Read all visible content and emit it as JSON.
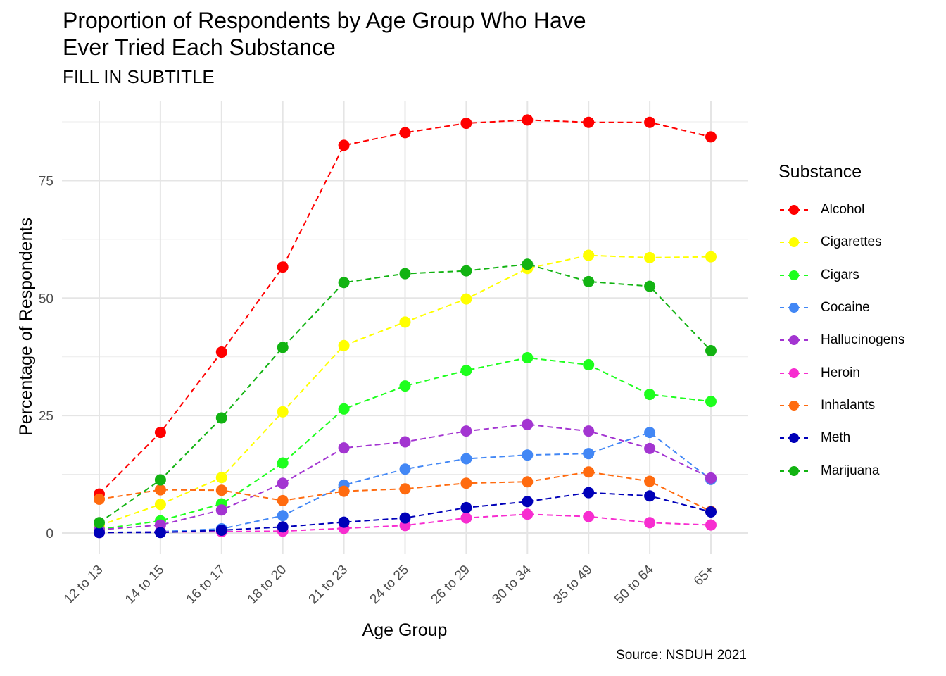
{
  "title": "Proportion of Respondents by Age Group Who Have\nEver Tried Each Substance",
  "subtitle": "FILL IN SUBTITLE",
  "caption": "Source: NSDUH 2021",
  "legend_title": "Substance",
  "chart_data": {
    "type": "line",
    "title": "Proportion of Respondents by Age Group Who Have Ever Tried Each Substance",
    "subtitle": "FILL IN SUBTITLE",
    "xlabel": "Age Group",
    "ylabel": "Percentage of Respondents",
    "categories": [
      "12 to 13",
      "14 to 15",
      "16 to 17",
      "18 to 20",
      "21 to 23",
      "24 to 25",
      "26 to 29",
      "30 to 34",
      "35 to 49",
      "50 to 64",
      "65+"
    ],
    "yticks": [
      0,
      25,
      50,
      75
    ],
    "ylim": [
      -4.5,
      92
    ],
    "grid": true,
    "legend": "right",
    "series": [
      {
        "name": "Alcohol",
        "color": "#FF0000",
        "values": [
          8.3,
          21.4,
          38.5,
          56.6,
          82.5,
          85.2,
          87.2,
          87.9,
          87.4,
          87.4,
          84.3
        ]
      },
      {
        "name": "Cigarettes",
        "color": "#FFFF00",
        "values": [
          1.6,
          6.1,
          11.8,
          25.8,
          39.9,
          44.9,
          49.8,
          56.3,
          59.1,
          58.6,
          58.8
        ]
      },
      {
        "name": "Cigars",
        "color": "#1EFF1E",
        "values": [
          0.8,
          2.6,
          6.2,
          14.9,
          26.4,
          31.3,
          34.6,
          37.3,
          35.8,
          29.5,
          28.0
        ]
      },
      {
        "name": "Cocaine",
        "color": "#4287F5",
        "values": [
          0.1,
          0.3,
          0.9,
          3.7,
          10.2,
          13.6,
          15.8,
          16.6,
          16.9,
          21.4,
          11.4
        ]
      },
      {
        "name": "Hallucinogens",
        "color": "#A335D1",
        "values": [
          0.7,
          1.7,
          4.9,
          10.6,
          18.1,
          19.4,
          21.7,
          23.1,
          21.7,
          18.0,
          11.7
        ]
      },
      {
        "name": "Heroin",
        "color": "#F72DD0",
        "values": [
          0.1,
          0.2,
          0.3,
          0.4,
          1.0,
          1.6,
          3.2,
          4.0,
          3.5,
          2.2,
          1.7
        ]
      },
      {
        "name": "Inhalants",
        "color": "#FF6B0F",
        "values": [
          7.2,
          9.2,
          9.1,
          6.9,
          8.9,
          9.4,
          10.6,
          10.9,
          13.0,
          11.0,
          4.6
        ]
      },
      {
        "name": "Meth",
        "color": "#0000B8",
        "values": [
          0.1,
          0.1,
          0.6,
          1.3,
          2.3,
          3.2,
          5.4,
          6.7,
          8.6,
          7.9,
          4.5
        ]
      },
      {
        "name": "Marijuana",
        "color": "#12B312",
        "values": [
          2.2,
          11.3,
          24.5,
          39.5,
          53.3,
          55.2,
          55.8,
          57.2,
          53.5,
          52.5,
          38.8
        ]
      }
    ]
  }
}
